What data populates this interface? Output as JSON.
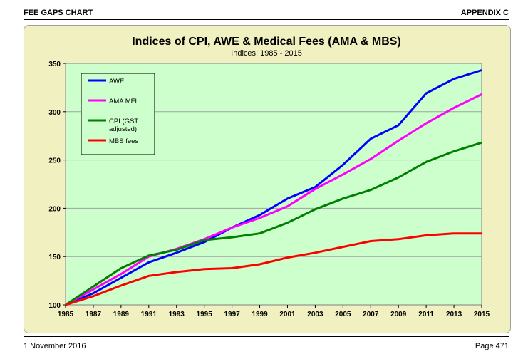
{
  "page": {
    "header_left": "FEE GAPS CHART",
    "header_right": "APPENDIX C",
    "footer_left": "1 November 2016",
    "footer_right": "Page 471"
  },
  "colors": {
    "outer_bg": "#f0f0c0",
    "plot_bg": "#ccffcc",
    "AWE": "#0000ff",
    "AMA MFI": "#ff00ff",
    "CPI (GST adjusted)": "#008000",
    "MBS fees": "#ff0000"
  },
  "chart_data": {
    "type": "line",
    "title": "Indices of CPI, AWE & Medical Fees (AMA & MBS)",
    "subtitle": "Indices: 1985 - 2015",
    "xlabel": "",
    "ylabel": "",
    "x": [
      1985,
      1987,
      1989,
      1991,
      1993,
      1995,
      1997,
      1999,
      2001,
      2003,
      2005,
      2007,
      2009,
      2011,
      2013,
      2015
    ],
    "x_tick_labels": [
      "1985",
      "1987",
      "1989",
      "1991",
      "1993",
      "1995",
      "1997",
      "1999",
      "2001",
      "2003",
      "2005",
      "2007",
      "2009",
      "2011",
      "2013",
      "2015"
    ],
    "y_tick_labels": [
      "100",
      "150",
      "200",
      "250",
      "300",
      "350"
    ],
    "xlim": [
      1985,
      2015
    ],
    "ylim": [
      100,
      350
    ],
    "grid": "horizontal",
    "legend_position": "top-left",
    "series": [
      {
        "name": "AWE",
        "color": "#0000ff",
        "values": [
          100,
          112,
          128,
          144,
          154,
          165,
          180,
          193,
          210,
          222,
          245,
          272,
          286,
          319,
          334,
          343
        ]
      },
      {
        "name": "AMA MFI",
        "color": "#ff00ff",
        "values": [
          100,
          116,
          132,
          150,
          158,
          168,
          180,
          190,
          202,
          220,
          235,
          251,
          270,
          288,
          304,
          318
        ]
      },
      {
        "name": "CPI (GST adjusted)",
        "color": "#008000",
        "values": [
          100,
          119,
          138,
          151,
          157,
          167,
          170,
          174,
          185,
          199,
          210,
          219,
          232,
          248,
          259,
          268
        ]
      },
      {
        "name": "MBS fees",
        "color": "#ff0000",
        "values": [
          100,
          109,
          120,
          130,
          134,
          137,
          138,
          142,
          149,
          154,
          160,
          166,
          168,
          172,
          174,
          174
        ]
      }
    ]
  }
}
